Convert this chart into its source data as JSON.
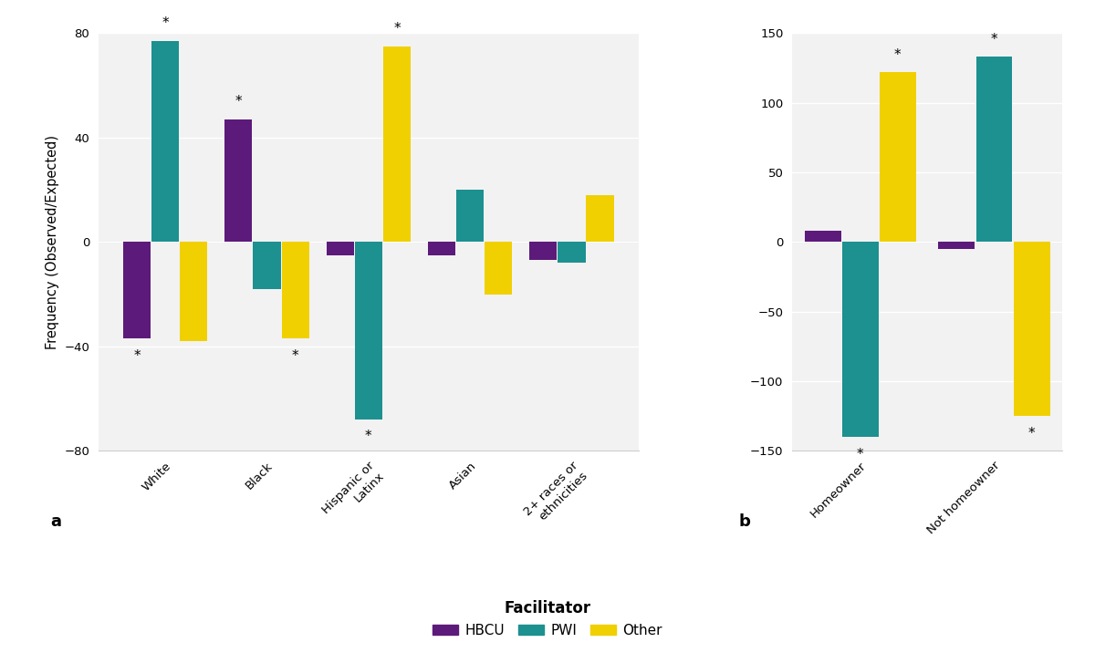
{
  "panel_a": {
    "categories": [
      "White",
      "Black",
      "Hispanic or\nLatinx",
      "Asian",
      "2+ races or\nethnicities"
    ],
    "HBCU": [
      -37,
      47,
      -5,
      -5,
      -7
    ],
    "PWI": [
      77,
      -18,
      -68,
      20,
      -8
    ],
    "Other": [
      -38,
      -37,
      75,
      -20,
      18
    ],
    "significance": {
      "HBCU": [
        true,
        true,
        false,
        false,
        false
      ],
      "PWI": [
        true,
        false,
        true,
        false,
        false
      ],
      "Other": [
        false,
        true,
        true,
        false,
        false
      ]
    },
    "ylim": [
      -80,
      80
    ],
    "yticks": [
      -80,
      -40,
      0,
      40,
      80
    ],
    "ylabel": "Frequency (Observed/Expected)"
  },
  "panel_b": {
    "categories": [
      "Homeowner",
      "Not homeowner"
    ],
    "HBCU": [
      8,
      -5
    ],
    "PWI": [
      -140,
      133
    ],
    "Other": [
      122,
      -125
    ],
    "significance": {
      "HBCU": [
        false,
        false
      ],
      "PWI": [
        true,
        true
      ],
      "Other": [
        true,
        true
      ]
    },
    "ylim": [
      -150,
      150
    ],
    "yticks": [
      -150,
      -100,
      -50,
      0,
      50,
      100,
      150
    ]
  },
  "colors": {
    "HBCU": "#5c1a7a",
    "PWI": "#1d9090",
    "Other": "#f0d000"
  },
  "legend_title": "Facilitator",
  "bar_width": 0.28,
  "background_color": "#f2f2f2"
}
